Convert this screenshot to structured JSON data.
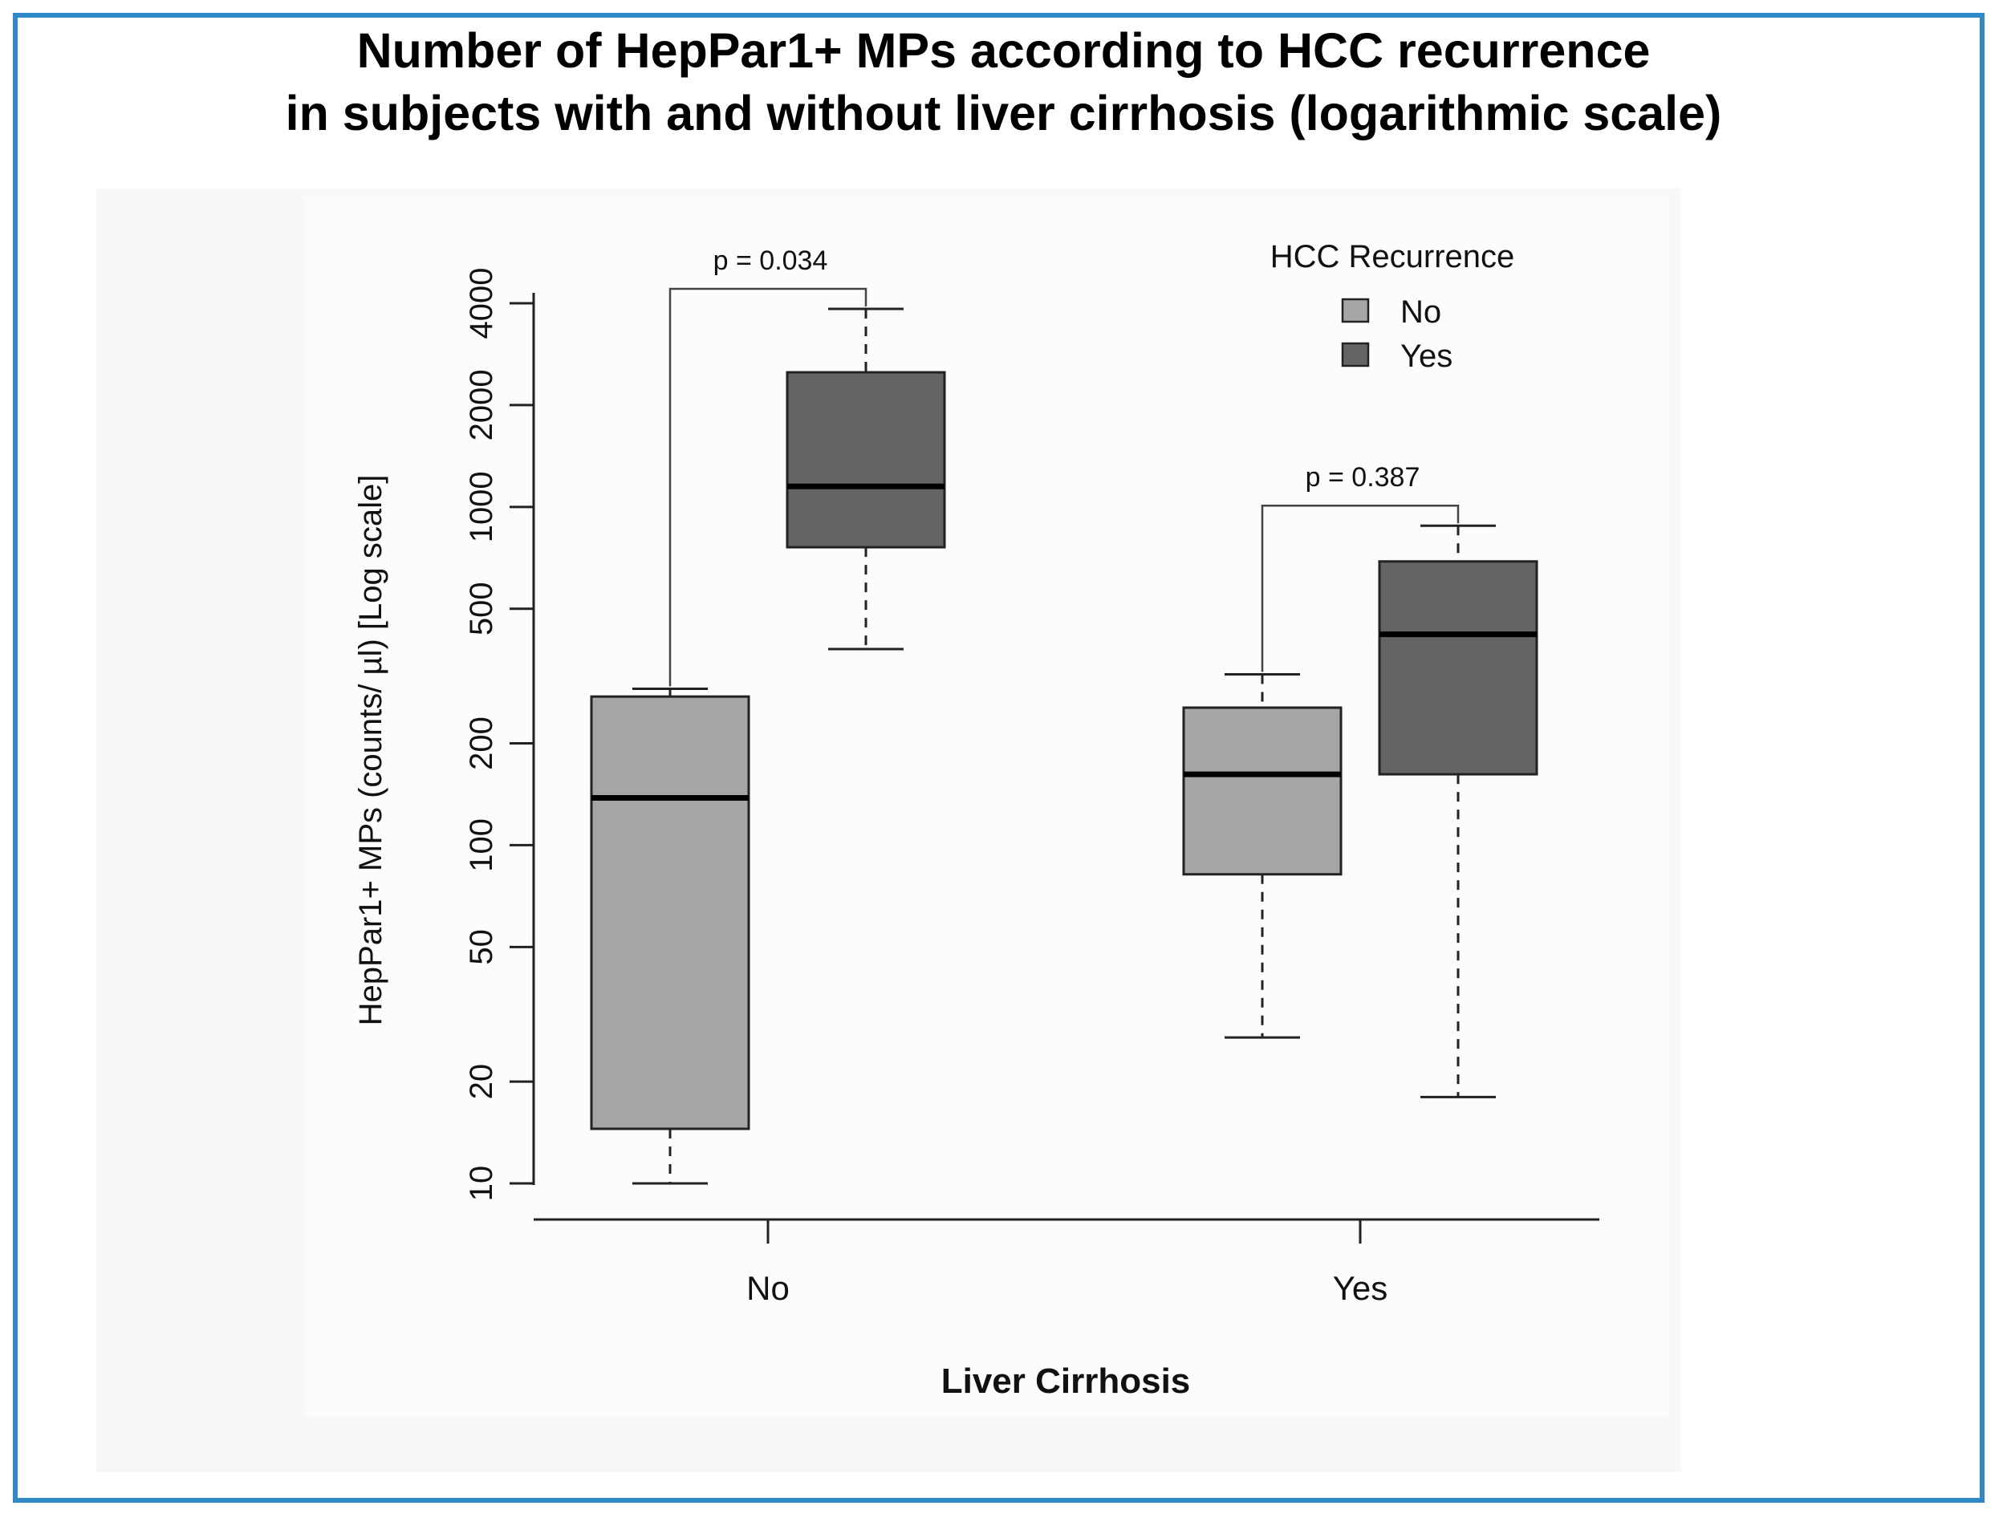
{
  "title_line1": "Number of HepPar1+ MPs according to HCC recurrence",
  "title_line2": "in subjects with and without liver cirrhosis (logarithmic scale)",
  "chart_data": {
    "type": "boxplot",
    "scale": "log",
    "xlabel": "Liver Cirrhosis",
    "ylabel": "HepPar1+ MPs (counts/ µl)  [Log scale]",
    "yticks": [
      10,
      20,
      50,
      100,
      200,
      500,
      1000,
      2000,
      4000
    ],
    "ylim": [
      8,
      4500
    ],
    "categories": [
      "No",
      "Yes"
    ],
    "legend": {
      "title": "HCC Recurrence",
      "placement": "top-right",
      "entries": [
        {
          "label": "No",
          "color": "#a6a6a6"
        },
        {
          "label": "Yes",
          "color": "#646464"
        }
      ]
    },
    "series": [
      {
        "name": "No",
        "color": "#a6a6a6",
        "boxes": [
          {
            "whisker_low": 10,
            "q1": 14.5,
            "median": 138,
            "q3": 275,
            "whisker_high": 290
          },
          {
            "whisker_low": 27,
            "q1": 82,
            "median": 162,
            "q3": 255,
            "whisker_high": 320
          }
        ]
      },
      {
        "name": "Yes",
        "color": "#646464",
        "boxes": [
          {
            "whisker_low": 380,
            "q1": 760,
            "median": 1150,
            "q3": 2500,
            "whisker_high": 3850
          },
          {
            "whisker_low": 18,
            "q1": 162,
            "median": 420,
            "q3": 690,
            "whisker_high": 880
          }
        ]
      }
    ],
    "annotations": [
      {
        "category": "No",
        "text": "p = 0.034"
      },
      {
        "category": "Yes",
        "text": "p = 0.387"
      }
    ]
  }
}
